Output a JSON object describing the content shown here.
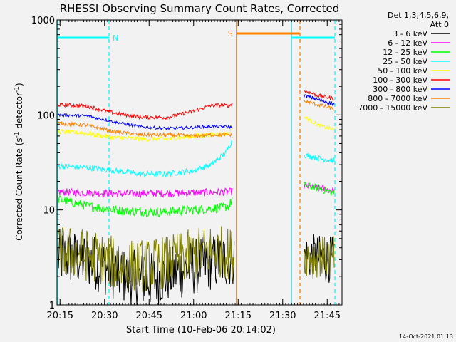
{
  "chart_data": {
    "type": "line",
    "title": "RHESSI Observing Summary Count Rates, Corrected",
    "xlabel": "Start Time (10-Feb-06 20:14:02)",
    "ylabel_main": "Corrected Count Rate (s",
    "ylabel_sup1": "-1",
    "ylabel_mid": " detector",
    "ylabel_sup2": "-1",
    "ylabel_end": ")",
    "footer": "14-Oct-2021 01:13",
    "legend_header": [
      "Det 1,3,4,5,6,9,",
      "Att 0"
    ],
    "y_scale": "log",
    "ylim": [
      1,
      1000
    ],
    "y_ticks": [
      {
        "value": 1,
        "label": "1"
      },
      {
        "value": 10,
        "label": "10"
      },
      {
        "value": 100,
        "label": "100"
      },
      {
        "value": 1000,
        "label": "1000"
      }
    ],
    "xlim": [
      20.233,
      21.833
    ],
    "x_ticks": [
      {
        "value": 20.25,
        "label": "20:15"
      },
      {
        "value": 20.5,
        "label": "20:30"
      },
      {
        "value": 20.75,
        "label": "20:45"
      },
      {
        "value": 21.0,
        "label": "21:00"
      },
      {
        "value": 21.25,
        "label": "21:15"
      },
      {
        "value": 21.5,
        "label": "21:30"
      },
      {
        "value": 21.75,
        "label": "21:45"
      }
    ],
    "grid": false,
    "legend_position": "right",
    "series": [
      {
        "name": "3 - 6 keV",
        "color": "#000000",
        "segments": [
          {
            "points": [
              [
                20.238,
                3.2
              ],
              [
                20.35,
                3.1
              ],
              [
                20.45,
                2.8
              ],
              [
                20.6,
                2.0
              ],
              [
                20.75,
                1.8
              ],
              [
                20.9,
                2.2
              ],
              [
                21.0,
                2.5
              ],
              [
                21.1,
                2.8
              ],
              [
                21.2,
                3.0
              ],
              [
                21.23,
                3.2
              ]
            ],
            "noise": 0.3
          },
          {
            "points": [
              [
                21.62,
                3.3
              ],
              [
                21.7,
                3.1
              ],
              [
                21.79,
                3.0
              ]
            ],
            "noise": 0.25
          }
        ]
      },
      {
        "name": "6 - 12 keV",
        "color": "#ff00ff",
        "segments": [
          {
            "points": [
              [
                20.238,
                15.5
              ],
              [
                20.4,
                15.2
              ],
              [
                20.6,
                14.8
              ],
              [
                20.8,
                15.0
              ],
              [
                21.0,
                15.2
              ],
              [
                21.2,
                15.5
              ],
              [
                21.22,
                15.6
              ]
            ],
            "noise": 0.04
          },
          {
            "points": [
              [
                21.62,
                18
              ],
              [
                21.7,
                17
              ],
              [
                21.79,
                16
              ]
            ],
            "noise": 0.04
          }
        ]
      },
      {
        "name": "12 - 25 keV",
        "color": "#00ff00",
        "segments": [
          {
            "points": [
              [
                20.238,
                13
              ],
              [
                20.4,
                11
              ],
              [
                20.6,
                9.8
              ],
              [
                20.8,
                9.5
              ],
              [
                21.0,
                10
              ],
              [
                21.15,
                10.5
              ],
              [
                21.2,
                11
              ],
              [
                21.22,
                13.5
              ]
            ],
            "noise": 0.05
          },
          {
            "points": [
              [
                21.62,
                18
              ],
              [
                21.7,
                17
              ],
              [
                21.79,
                15
              ]
            ],
            "noise": 0.04
          }
        ]
      },
      {
        "name": "25 - 50 keV",
        "color": "#00ffff",
        "segments": [
          {
            "points": [
              [
                20.238,
                29
              ],
              [
                20.4,
                28
              ],
              [
                20.55,
                26
              ],
              [
                20.7,
                24
              ],
              [
                20.85,
                24
              ],
              [
                21.0,
                26
              ],
              [
                21.1,
                30
              ],
              [
                21.18,
                40
              ],
              [
                21.22,
                55
              ]
            ],
            "noise": 0.03
          },
          {
            "points": [
              [
                21.62,
                38
              ],
              [
                21.7,
                35
              ],
              [
                21.79,
                33
              ]
            ],
            "noise": 0.03
          }
        ]
      },
      {
        "name": "50 - 100 keV",
        "color": "#ffff00",
        "segments": [
          {
            "points": [
              [
                20.238,
                67
              ],
              [
                20.4,
                64
              ],
              [
                20.55,
                58
              ],
              [
                20.7,
                56
              ],
              [
                20.85,
                56
              ],
              [
                21.0,
                60
              ],
              [
                21.1,
                62
              ],
              [
                21.2,
                64
              ],
              [
                21.22,
                80
              ]
            ],
            "noise": 0.025
          },
          {
            "points": [
              [
                21.62,
                95
              ],
              [
                21.7,
                78
              ],
              [
                21.79,
                70
              ]
            ],
            "noise": 0.02
          }
        ]
      },
      {
        "name": "100 - 300 keV",
        "color": "#ff0000",
        "segments": [
          {
            "points": [
              [
                20.238,
                128
              ],
              [
                20.4,
                124
              ],
              [
                20.55,
                105
              ],
              [
                20.7,
                95
              ],
              [
                20.85,
                94
              ],
              [
                21.0,
                110
              ],
              [
                21.1,
                126
              ],
              [
                21.2,
                126
              ],
              [
                21.22,
                132
              ]
            ],
            "noise": 0.02
          },
          {
            "points": [
              [
                21.62,
                180
              ],
              [
                21.7,
                160
              ],
              [
                21.79,
                148
              ]
            ],
            "noise": 0.02
          }
        ]
      },
      {
        "name": "300 - 800 keV",
        "color": "#0000ff",
        "segments": [
          {
            "points": [
              [
                20.238,
                100
              ],
              [
                20.4,
                98
              ],
              [
                20.55,
                85
              ],
              [
                20.7,
                75
              ],
              [
                20.85,
                72
              ],
              [
                21.0,
                74
              ],
              [
                21.1,
                76
              ],
              [
                21.2,
                75
              ],
              [
                21.22,
                74
              ]
            ],
            "noise": 0.015
          },
          {
            "points": [
              [
                21.62,
                160
              ],
              [
                21.7,
                145
              ],
              [
                21.79,
                130
              ]
            ],
            "noise": 0.02
          }
        ]
      },
      {
        "name": "800 - 7000 keV",
        "color": "#ff8000",
        "segments": [
          {
            "points": [
              [
                20.238,
                82
              ],
              [
                20.4,
                78
              ],
              [
                20.55,
                67
              ],
              [
                20.7,
                62
              ],
              [
                20.85,
                62
              ],
              [
                21.0,
                60
              ],
              [
                21.1,
                62
              ],
              [
                21.2,
                62
              ],
              [
                21.22,
                60
              ]
            ],
            "noise": 0.02
          },
          {
            "points": [
              [
                21.62,
                140
              ],
              [
                21.7,
                128
              ],
              [
                21.79,
                115
              ]
            ],
            "noise": 0.02
          }
        ]
      },
      {
        "name": "7000 - 15000 keV",
        "color": "#808000",
        "segments": [
          {
            "points": [
              [
                20.238,
                3.6
              ],
              [
                20.35,
                3.5
              ],
              [
                20.45,
                3.2
              ],
              [
                20.6,
                2.6
              ],
              [
                20.75,
                2.6
              ],
              [
                20.9,
                3.0
              ],
              [
                21.0,
                3.4
              ],
              [
                21.1,
                3.8
              ],
              [
                21.2,
                3.5
              ],
              [
                21.23,
                3.4
              ]
            ],
            "noise": 0.28
          },
          {
            "points": [
              [
                21.62,
                3.4
              ],
              [
                21.7,
                3.2
              ],
              [
                21.79,
                3.2
              ]
            ],
            "noise": 0.22
          }
        ]
      }
    ],
    "markers": [
      {
        "type": "vline",
        "x": 20.238,
        "color": "#00ffff",
        "dashed": false
      },
      {
        "type": "vline",
        "x": 20.525,
        "color": "#00ffff",
        "dashed": true
      },
      {
        "type": "vline",
        "x": 21.24,
        "color": "#ff8000",
        "dashed": false
      },
      {
        "type": "vline",
        "x": 21.55,
        "color": "#00ffff",
        "dashed": false
      },
      {
        "type": "vline",
        "x": 21.597,
        "color": "#ff8000",
        "dashed": true
      },
      {
        "type": "vline",
        "x": 21.793,
        "color": "#00ffff",
        "dashed": true
      }
    ],
    "bars": [
      {
        "x1": 20.238,
        "x2": 20.525,
        "y": 650,
        "color": "#00ffff",
        "label": "N"
      },
      {
        "x1": 21.24,
        "x2": 21.597,
        "y": 720,
        "color": "#ff8000",
        "label": "S"
      },
      {
        "x1": 21.55,
        "x2": 21.793,
        "y": 650,
        "color": "#00ffff",
        "label": ""
      }
    ]
  }
}
